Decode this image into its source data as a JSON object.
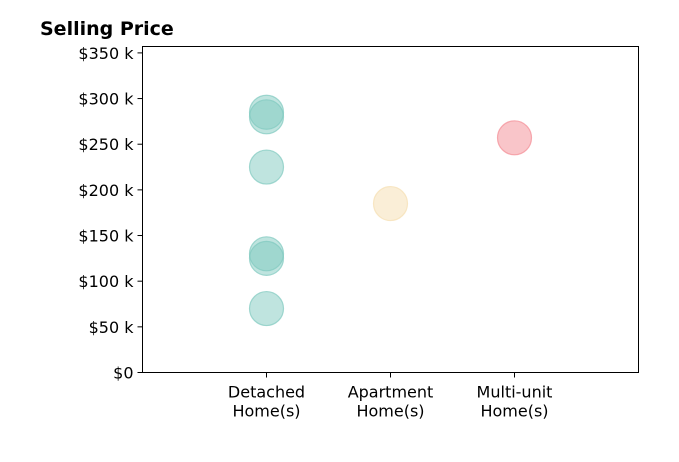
{
  "chart_data": {
    "type": "scatter",
    "title": "Selling Price",
    "xlabel": "",
    "ylabel": "",
    "categories": [
      [
        "Detached",
        "Home(s)"
      ],
      [
        "Apartment",
        "Home(s)"
      ],
      [
        "Multi-unit",
        "Home(s)"
      ]
    ],
    "y_ticks": [
      {
        "value": 0,
        "label": "$0"
      },
      {
        "value": 50000,
        "label": "$50 k"
      },
      {
        "value": 100000,
        "label": "$100 k"
      },
      {
        "value": 150000,
        "label": "$150 k"
      },
      {
        "value": 200000,
        "label": "$200 k"
      },
      {
        "value": 250000,
        "label": "$250 k"
      },
      {
        "value": 300000,
        "label": "$300 k"
      },
      {
        "value": 350000,
        "label": "$350 k"
      }
    ],
    "ylim": [
      0,
      357000
    ],
    "xlim": [
      0,
      4
    ],
    "grid": false,
    "legend": "none",
    "series": [
      {
        "category": 0,
        "color": "#7fc9bf",
        "values": [
          285000,
          280000,
          225000,
          130000,
          125000,
          70000
        ]
      },
      {
        "category": 1,
        "color": "#f5deb0",
        "values": [
          185000
        ]
      },
      {
        "category": 2,
        "color": "#f48b94",
        "values": [
          257000
        ]
      }
    ],
    "marker_opacity": 0.5
  }
}
